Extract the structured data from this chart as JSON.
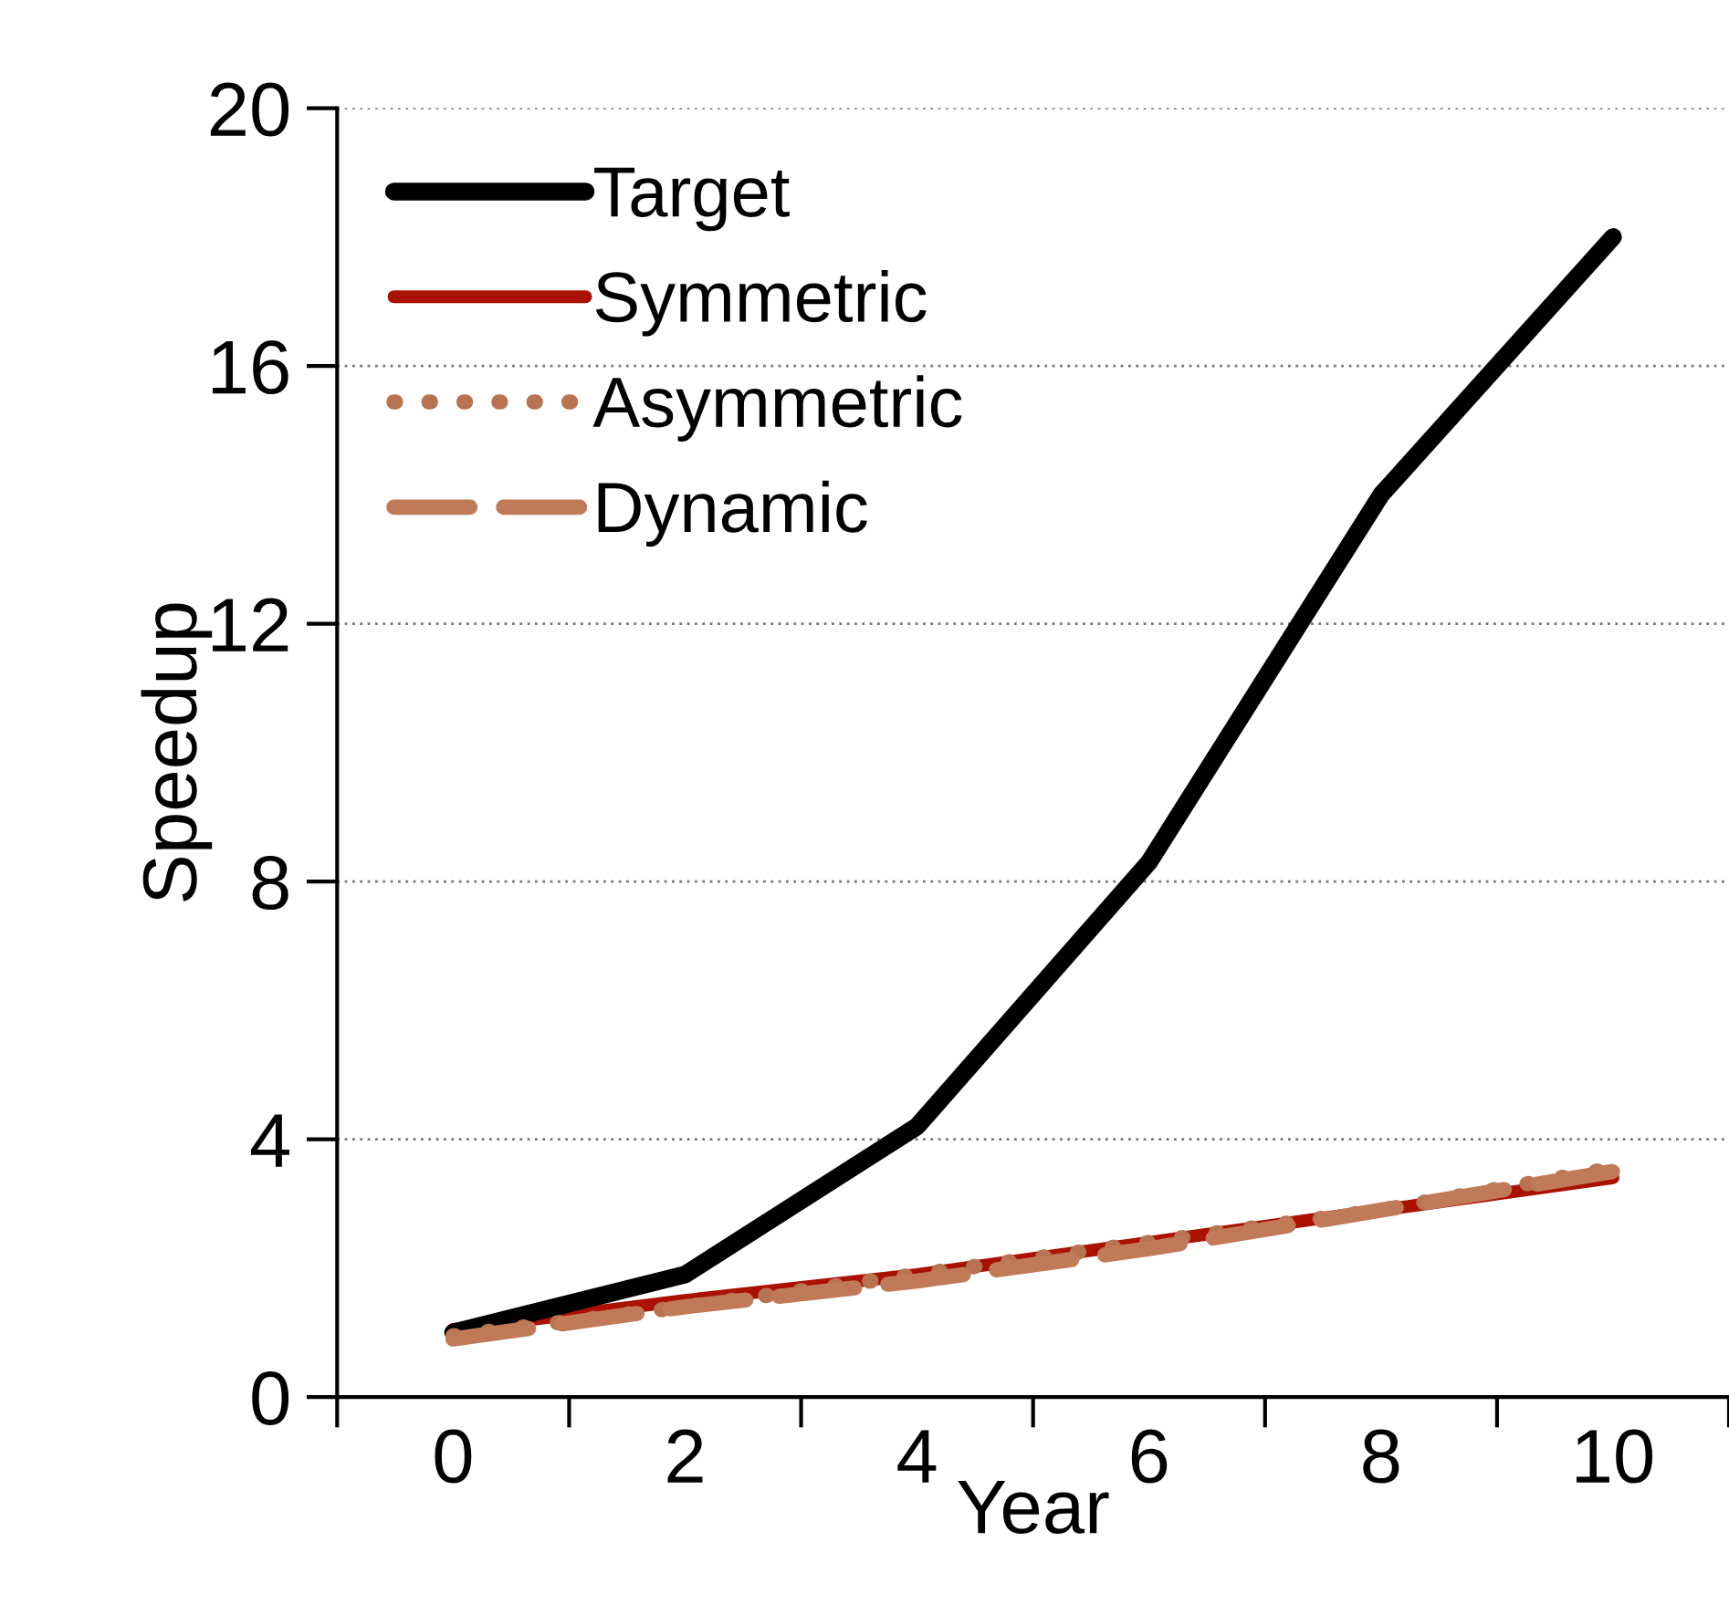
{
  "chart_data": {
    "type": "line",
    "xlabel": "Year",
    "ylabel": "Speedup",
    "categories": [
      "0",
      "2",
      "4",
      "6",
      "8",
      "10"
    ],
    "ylim": [
      0,
      20
    ],
    "yticks": [
      0,
      4,
      8,
      12,
      16,
      20
    ],
    "grid": "y",
    "legend": "top left",
    "series": [
      {
        "name": "Target",
        "color": "#000000",
        "line_style": "solid",
        "values": [
          1.0,
          1.9,
          4.2,
          8.3,
          14.0,
          18.0
        ]
      },
      {
        "name": "Symmetric",
        "color": "#aa1100",
        "line_style": "solid",
        "values": [
          1.05,
          1.5,
          1.9,
          2.4,
          2.9,
          3.4
        ]
      },
      {
        "name": "Asymmetric",
        "color": "#b87352",
        "line_style": "dotted",
        "values": [
          0.95,
          1.4,
          1.9,
          2.4,
          2.9,
          3.55
        ]
      },
      {
        "name": "Dynamic",
        "color": "#c07a58",
        "line_style": "dashed",
        "values": [
          0.9,
          1.4,
          1.8,
          2.3,
          2.9,
          3.5
        ]
      }
    ]
  }
}
